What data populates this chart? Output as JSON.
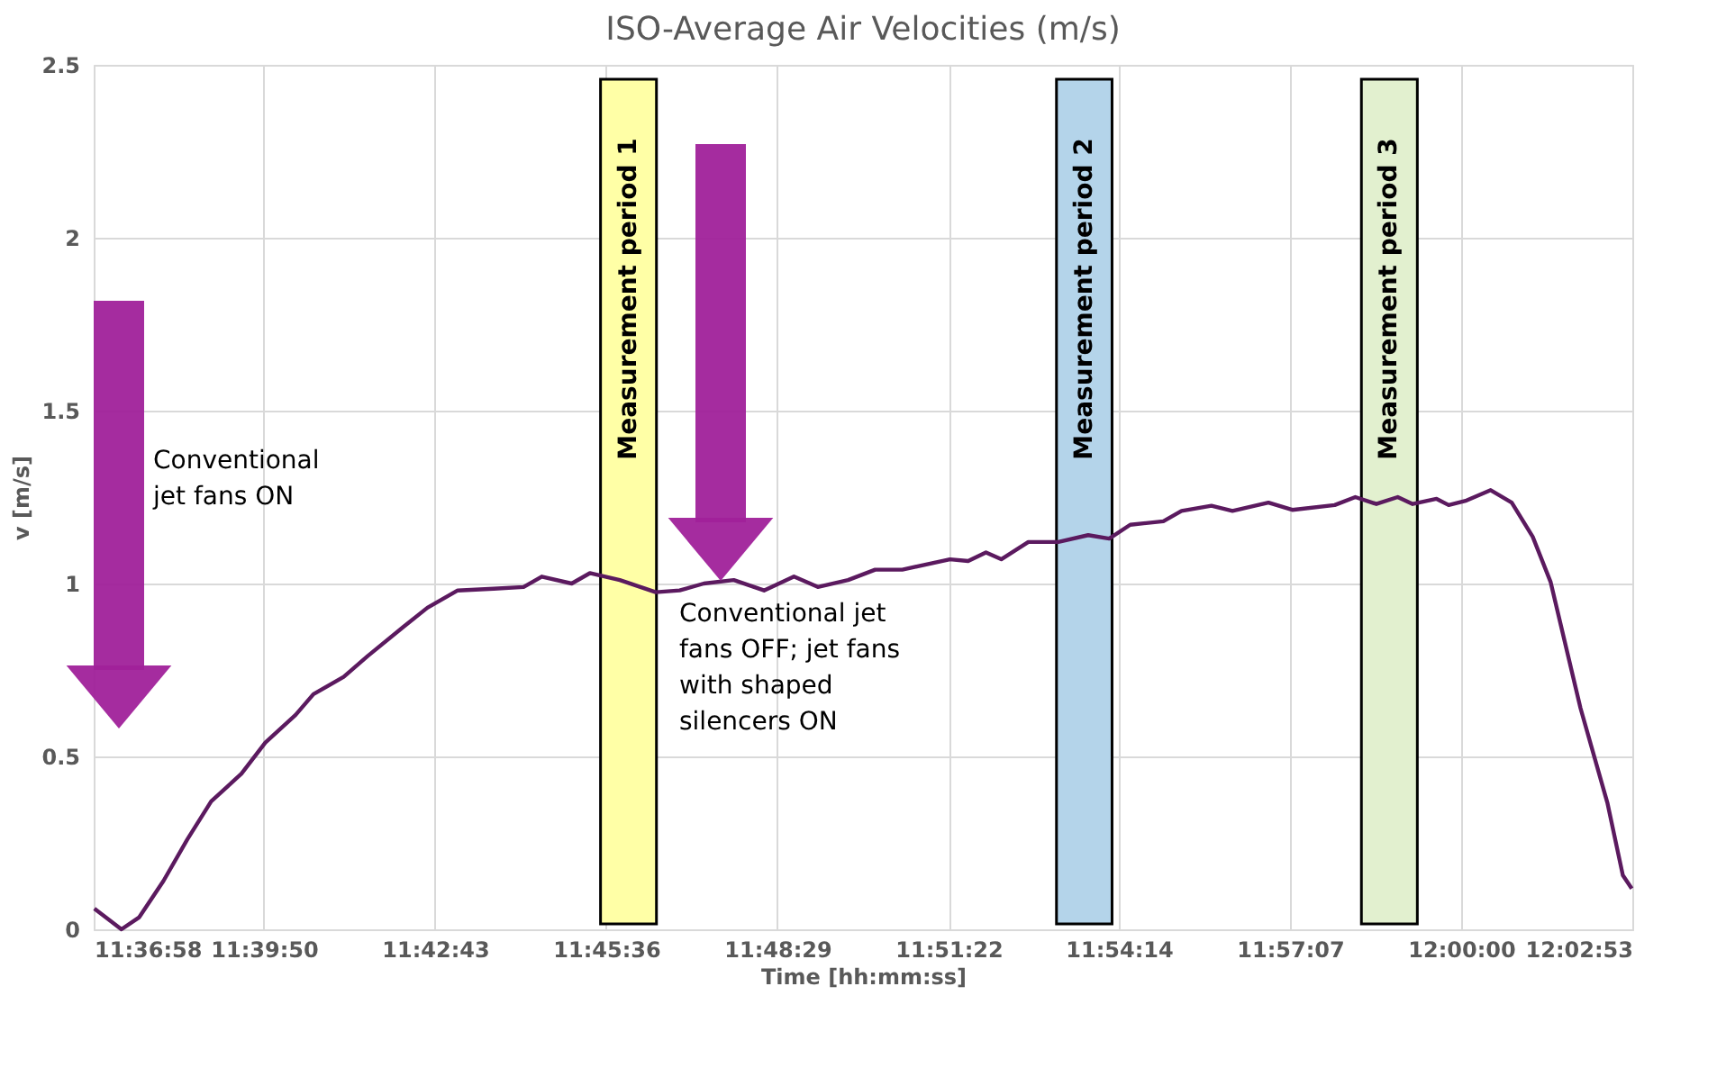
{
  "chart_data": {
    "type": "line",
    "title": "ISO-Average Air Velocities (m/s)",
    "xlabel": "Time [hh:mm:ss]",
    "ylabel": "v [m/s]",
    "x": [
      11.6163,
      11.6239,
      11.6289,
      11.6357,
      11.6424,
      11.6491,
      11.6576,
      11.6643,
      11.6728,
      11.6778,
      11.6863,
      11.693,
      11.7031,
      11.7098,
      11.7183,
      11.7284,
      11.7368,
      11.7419,
      11.7503,
      11.7554,
      11.7638,
      11.7739,
      11.7806,
      11.7874,
      11.7958,
      11.8043,
      11.8127,
      11.8194,
      11.8279,
      11.8355,
      11.8431,
      11.8565,
      11.8616,
      11.8666,
      11.8709,
      11.8785,
      11.8869,
      11.8953,
      11.9012,
      11.9071,
      11.9164,
      11.9215,
      11.9299,
      11.9358,
      11.9459,
      11.9526,
      11.9645,
      11.9703,
      11.9762,
      11.9822,
      11.9864,
      11.9931,
      11.9965,
      12.0015,
      12.0083,
      12.0142,
      12.0201,
      12.0251,
      12.0335,
      12.0411,
      12.0454,
      12.0479
    ],
    "series": [
      {
        "color": "#5b1a5f",
        "values": [
          0.06,
          0.0,
          0.035,
          0.14,
          0.26,
          0.37,
          0.45,
          0.54,
          0.62,
          0.68,
          0.73,
          0.79,
          0.875,
          0.93,
          0.98,
          0.985,
          0.99,
          1.02,
          1.0,
          1.03,
          1.01,
          0.975,
          0.98,
          1.0,
          1.01,
          0.98,
          1.02,
          0.99,
          1.01,
          1.04,
          1.04,
          1.07,
          1.065,
          1.09,
          1.07,
          1.12,
          1.12,
          1.14,
          1.13,
          1.17,
          1.18,
          1.21,
          1.225,
          1.21,
          1.234,
          1.213,
          1.227,
          1.25,
          1.23,
          1.25,
          1.23,
          1.245,
          1.227,
          1.24,
          1.27,
          1.234,
          1.135,
          1.005,
          0.64,
          0.364,
          0.156,
          0.118
        ]
      }
    ],
    "xlim": [
      11.616111,
      12.048056
    ],
    "xticks": [
      {
        "value": 11.616111,
        "label": "11:36:58"
      },
      {
        "value": 11.663889,
        "label": "11:39:50"
      },
      {
        "value": 11.711944,
        "label": "11:42:43"
      },
      {
        "value": 11.76,
        "label": "11:45:36"
      },
      {
        "value": 11.808056,
        "label": "11:48:29"
      },
      {
        "value": 11.856111,
        "label": "11:51:22"
      },
      {
        "value": 11.903889,
        "label": "11:54:14"
      },
      {
        "value": 11.951944,
        "label": "11:57:07"
      },
      {
        "value": 12.0,
        "label": "12:00:00"
      },
      {
        "value": 12.048056,
        "label": "12:02:53"
      }
    ],
    "ylim": [
      0,
      2.5
    ],
    "yticks": [
      0,
      0.5,
      1,
      1.5,
      2,
      2.5
    ],
    "grid": true,
    "marker": "none",
    "line_style": "solid",
    "bands": [
      {
        "axis": "x",
        "from": 11.7584,
        "to": 11.7741,
        "label": "Measurement period 1",
        "color": "#ffffa6"
      },
      {
        "axis": "x",
        "from": 11.8864,
        "to": 11.902,
        "label": "Measurement period 2",
        "color": "#b4d4ea"
      },
      {
        "axis": "x",
        "from": 11.972,
        "to": 11.9877,
        "label": "Measurement period 3",
        "color": "#e2f0cf"
      }
    ],
    "annotations": [
      "Conventional\njet fans ON",
      "Conventional jet\nfans OFF; jet fans\nwith shaped\nsilencers ON"
    ]
  }
}
